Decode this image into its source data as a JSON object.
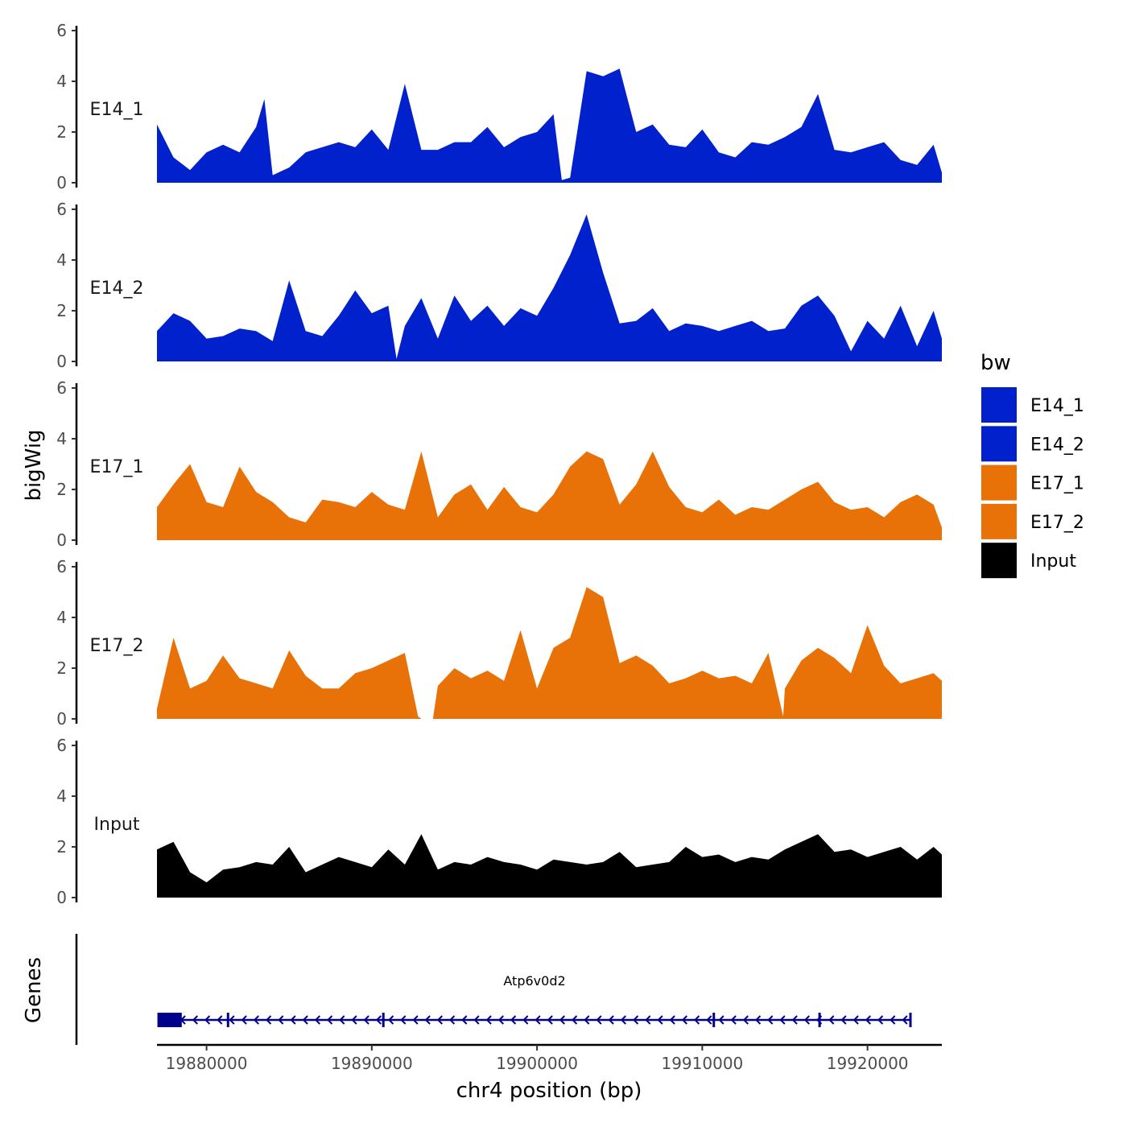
{
  "chart_data": {
    "type": "area",
    "ylabel": "bigWig",
    "xlabel": "chr4 position (bp)",
    "xlim": [
      19877000,
      19924500
    ],
    "x_ticks": [
      19880000,
      19890000,
      19900000,
      19910000,
      19920000
    ],
    "x_tick_labels": [
      "19880000",
      "19890000",
      "19900000",
      "19910000",
      "19920000"
    ],
    "ylim": [
      0,
      6
    ],
    "y_ticks": [
      0,
      2,
      4,
      6
    ],
    "y_tick_labels": [
      "0",
      "2",
      "4",
      "6"
    ],
    "genes_label": "Genes",
    "legend": {
      "title": "bw",
      "placement": "right"
    },
    "series": [
      {
        "name": "E14_1",
        "color": "#0021CC",
        "x": [
          19877000,
          19878000,
          19879000,
          19880000,
          19881000,
          19882000,
          19883000,
          19883500,
          19884000,
          19885000,
          19886000,
          19887000,
          19888000,
          19889000,
          19890000,
          19891000,
          19892000,
          19893000,
          19894000,
          19895000,
          19896000,
          19897000,
          19898000,
          19899000,
          19900000,
          19901000,
          19901500,
          19902000,
          19903000,
          19904000,
          19905000,
          19906000,
          19907000,
          19908000,
          19909000,
          19910000,
          19911000,
          19912000,
          19913000,
          19914000,
          19915000,
          19916000,
          19917000,
          19918000,
          19919000,
          19920000,
          19921000,
          19922000,
          19923000,
          19924000,
          19924500
        ],
        "values": [
          2.3,
          1.0,
          0.5,
          1.2,
          1.5,
          1.2,
          2.2,
          3.3,
          0.3,
          0.6,
          1.2,
          1.4,
          1.6,
          1.4,
          2.1,
          1.3,
          3.9,
          1.3,
          1.3,
          1.6,
          1.6,
          2.2,
          1.4,
          1.8,
          2.0,
          2.7,
          0.1,
          0.2,
          4.4,
          4.2,
          4.5,
          2.0,
          2.3,
          1.5,
          1.4,
          2.1,
          1.2,
          1.0,
          1.6,
          1.5,
          1.8,
          2.2,
          3.5,
          1.3,
          1.2,
          1.4,
          1.6,
          0.9,
          0.7,
          1.5,
          0.4
        ]
      },
      {
        "name": "E14_2",
        "color": "#0021CC",
        "x": [
          19877000,
          19878000,
          19879000,
          19880000,
          19881000,
          19882000,
          19883000,
          19884000,
          19885000,
          19886000,
          19887000,
          19888000,
          19889000,
          19890000,
          19891000,
          19891500,
          19892000,
          19893000,
          19894000,
          19895000,
          19896000,
          19897000,
          19898000,
          19899000,
          19900000,
          19901000,
          19902000,
          19903000,
          19904000,
          19905000,
          19906000,
          19907000,
          19908000,
          19909000,
          19910000,
          19911000,
          19912000,
          19913000,
          19914000,
          19915000,
          19916000,
          19917000,
          19918000,
          19919000,
          19920000,
          19921000,
          19922000,
          19923000,
          19924000,
          19924500
        ],
        "values": [
          1.2,
          1.9,
          1.6,
          0.9,
          1.0,
          1.3,
          1.2,
          0.8,
          3.2,
          1.2,
          1.0,
          1.8,
          2.8,
          1.9,
          2.2,
          0.1,
          1.4,
          2.5,
          0.9,
          2.6,
          1.6,
          2.2,
          1.4,
          2.1,
          1.8,
          2.9,
          4.2,
          5.8,
          3.5,
          1.5,
          1.6,
          2.1,
          1.2,
          1.5,
          1.4,
          1.2,
          1.4,
          1.6,
          1.2,
          1.3,
          2.2,
          2.6,
          1.8,
          0.4,
          1.6,
          0.9,
          2.2,
          0.6,
          2.0,
          0.9
        ]
      },
      {
        "name": "E17_1",
        "color": "#E87207",
        "x": [
          19877000,
          19878000,
          19879000,
          19880000,
          19881000,
          19882000,
          19883000,
          19884000,
          19885000,
          19886000,
          19887000,
          19888000,
          19889000,
          19890000,
          19891000,
          19892000,
          19893000,
          19894000,
          19895000,
          19896000,
          19897000,
          19898000,
          19899000,
          19900000,
          19901000,
          19902000,
          19903000,
          19904000,
          19905000,
          19906000,
          19907000,
          19908000,
          19909000,
          19910000,
          19911000,
          19912000,
          19913000,
          19914000,
          19915000,
          19916000,
          19917000,
          19918000,
          19919000,
          19920000,
          19921000,
          19922000,
          19923000,
          19924000,
          19924500
        ],
        "values": [
          1.3,
          2.2,
          3.0,
          1.5,
          1.3,
          2.9,
          1.9,
          1.5,
          0.9,
          0.7,
          1.6,
          1.5,
          1.3,
          1.9,
          1.4,
          1.2,
          3.5,
          0.9,
          1.8,
          2.2,
          1.2,
          2.1,
          1.3,
          1.1,
          1.8,
          2.9,
          3.5,
          3.2,
          1.4,
          2.2,
          3.5,
          2.1,
          1.3,
          1.1,
          1.6,
          1.0,
          1.3,
          1.2,
          1.6,
          2.0,
          2.3,
          1.5,
          1.2,
          1.3,
          0.9,
          1.5,
          1.8,
          1.4,
          0.5
        ]
      },
      {
        "name": "E17_2",
        "color": "#E87207",
        "x": [
          19877000,
          19878000,
          19879000,
          19880000,
          19881000,
          19882000,
          19883000,
          19884000,
          19885000,
          19886000,
          19887000,
          19888000,
          19889000,
          19890000,
          19891000,
          19892000,
          19892800,
          19893000,
          19893700,
          19894000,
          19895000,
          19896000,
          19897000,
          19898000,
          19899000,
          19900000,
          19901000,
          19902000,
          19903000,
          19904000,
          19905000,
          19906000,
          19907000,
          19908000,
          19909000,
          19910000,
          19911000,
          19912000,
          19913000,
          19914000,
          19914900,
          19915000,
          19916000,
          19917000,
          19918000,
          19919000,
          19920000,
          19921000,
          19922000,
          19923000,
          19924000,
          19924500
        ],
        "values": [
          0.4,
          3.2,
          1.2,
          1.5,
          2.5,
          1.6,
          1.4,
          1.2,
          2.7,
          1.7,
          1.2,
          1.2,
          1.8,
          2.0,
          2.3,
          2.6,
          0.1,
          0.0,
          0.0,
          1.3,
          2.0,
          1.6,
          1.9,
          1.5,
          3.5,
          1.2,
          2.8,
          3.2,
          5.2,
          4.8,
          2.2,
          2.5,
          2.1,
          1.4,
          1.6,
          1.9,
          1.6,
          1.7,
          1.4,
          2.6,
          0.1,
          1.2,
          2.3,
          2.8,
          2.4,
          1.8,
          3.7,
          2.1,
          1.4,
          1.6,
          1.8,
          1.5
        ]
      },
      {
        "name": "Input",
        "color": "#000000",
        "x": [
          19877000,
          19878000,
          19879000,
          19880000,
          19881000,
          19882000,
          19883000,
          19884000,
          19885000,
          19886000,
          19887000,
          19888000,
          19889000,
          19890000,
          19891000,
          19892000,
          19893000,
          19894000,
          19895000,
          19896000,
          19897000,
          19898000,
          19899000,
          19900000,
          19901000,
          19902000,
          19903000,
          19904000,
          19905000,
          19906000,
          19907000,
          19908000,
          19909000,
          19910000,
          19911000,
          19912000,
          19913000,
          19914000,
          19915000,
          19916000,
          19917000,
          19918000,
          19919000,
          19920000,
          19921000,
          19922000,
          19923000,
          19924000,
          19924500
        ],
        "values": [
          1.9,
          2.2,
          1.0,
          0.6,
          1.1,
          1.2,
          1.4,
          1.3,
          2.0,
          1.0,
          1.3,
          1.6,
          1.4,
          1.2,
          1.9,
          1.3,
          2.5,
          1.1,
          1.4,
          1.3,
          1.6,
          1.4,
          1.3,
          1.1,
          1.5,
          1.4,
          1.3,
          1.4,
          1.8,
          1.2,
          1.3,
          1.4,
          2.0,
          1.6,
          1.7,
          1.4,
          1.6,
          1.5,
          1.9,
          2.2,
          2.5,
          1.8,
          1.9,
          1.6,
          1.8,
          2.0,
          1.5,
          2.0,
          1.7
        ]
      }
    ],
    "genes": [
      {
        "name": "Atp6v0d2",
        "color": "#00008B",
        "strand": "-",
        "start": 19877100,
        "end": 19922600,
        "thick_start": 19877100,
        "thick_end": 19878500,
        "exons": [
          19877100,
          19881300,
          19890700,
          19910700,
          19917100,
          19922600
        ]
      }
    ]
  }
}
